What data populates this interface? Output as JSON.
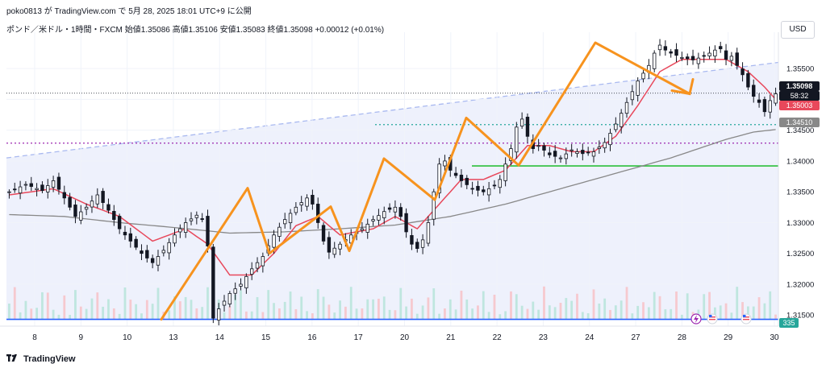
{
  "header": {
    "top_line": "poko0813 が TradingView.com で 5月 28, 2025 18:01 UTC+9 に公開",
    "symbol_line": "ポンド／米ドル・1時間・FXCM",
    "ohlc": [
      {
        "label": "始値",
        "value": "1.35086"
      },
      {
        "label": "高値",
        "value": "1.35106"
      },
      {
        "label": "安値",
        "value": "1.35083"
      },
      {
        "label": "終値",
        "value": "1.35098"
      }
    ],
    "change": "+0.00012 (+0.01%)"
  },
  "currency_button": "USD",
  "logo_text": "TradingView",
  "price_tags": {
    "last_price": "1.35098",
    "countdown": "58:32",
    "ma_fast": "1.35003",
    "ma_slow": "1.34510",
    "volume": "335"
  },
  "colors": {
    "up": "#089981",
    "down": "#131722",
    "candle": "#131722",
    "ma_fast": "#e8485b",
    "ma_slow": "#888888",
    "zigzag": "#f7931e",
    "channel_fill": "#e8ecfb",
    "channel_line": "#a9b9f0",
    "support": "#2bbf3a",
    "bottom_line": "#2962ff",
    "purple_dot": "#9c27b0",
    "green_dot": "#26a69a"
  },
  "chart_data": {
    "type": "candlestick",
    "y_axis_ticks": [
      "1.35500",
      "1.35000",
      "1.34500",
      "1.34000",
      "1.33500",
      "1.33000",
      "1.32500",
      "1.32000",
      "1.31500"
    ],
    "ylim": [
      1.3132,
      1.3609
    ],
    "x_axis_labels": [
      "8",
      "9",
      "10",
      "13",
      "14",
      "15",
      "16",
      "17",
      "20",
      "21",
      "22",
      "23",
      "24",
      "27",
      "28",
      "29",
      "30"
    ],
    "zigzag_points": [
      {
        "day": "13",
        "price": 1.3143
      },
      {
        "day": "14-15",
        "price": 1.3356
      },
      {
        "day": "15",
        "price": 1.325
      },
      {
        "day": "16-17",
        "price": 1.3326
      },
      {
        "day": "17",
        "price": 1.3254
      },
      {
        "day": "20",
        "price": 1.3404
      },
      {
        "day": "21",
        "price": 1.3337
      },
      {
        "day": "21-22",
        "price": 1.347
      },
      {
        "day": "23",
        "price": 1.3393
      },
      {
        "day": "25",
        "price": 1.3592
      },
      {
        "day": "28",
        "price": 1.3509
      }
    ],
    "horizontal_levels": [
      {
        "name": "support",
        "price": 1.3392
      },
      {
        "name": "purple_dotted",
        "price": 1.3429
      },
      {
        "name": "green_dotted",
        "price": 1.3459
      },
      {
        "name": "blue_bottom",
        "price": 1.3143
      }
    ],
    "price_path": [
      [
        0,
        1.335
      ],
      [
        3,
        1.3362
      ],
      [
        6,
        1.3352
      ],
      [
        8,
        1.3368
      ],
      [
        10,
        1.334
      ],
      [
        12,
        1.331
      ],
      [
        14,
        1.3325
      ],
      [
        16,
        1.3345
      ],
      [
        18,
        1.332
      ],
      [
        20,
        1.329
      ],
      [
        22,
        1.327
      ],
      [
        24,
        1.325
      ],
      [
        26,
        1.3235
      ],
      [
        28,
        1.3255
      ],
      [
        30,
        1.328
      ],
      [
        32,
        1.33
      ],
      [
        34,
        1.3312
      ],
      [
        35,
        1.3305
      ],
      [
        36,
        1.3262
      ],
      [
        37,
        1.3145
      ],
      [
        38,
        1.316
      ],
      [
        40,
        1.3185
      ],
      [
        42,
        1.32
      ],
      [
        44,
        1.3225
      ],
      [
        46,
        1.3245
      ],
      [
        48,
        1.328
      ],
      [
        50,
        1.3305
      ],
      [
        52,
        1.3325
      ],
      [
        54,
        1.334
      ],
      [
        55,
        1.333
      ],
      [
        56,
        1.33
      ],
      [
        57,
        1.327
      ],
      [
        58,
        1.3252
      ],
      [
        60,
        1.3265
      ],
      [
        62,
        1.328
      ],
      [
        64,
        1.329
      ],
      [
        66,
        1.3305
      ],
      [
        68,
        1.3318
      ],
      [
        70,
        1.3325
      ],
      [
        71,
        1.331
      ],
      [
        72,
        1.3285
      ],
      [
        73,
        1.3265
      ],
      [
        74,
        1.3258
      ],
      [
        75,
        1.3272
      ],
      [
        76,
        1.33
      ],
      [
        77,
        1.335
      ],
      [
        78,
        1.3395
      ],
      [
        79,
        1.34
      ],
      [
        80,
        1.3385
      ],
      [
        82,
        1.3368
      ],
      [
        84,
        1.3355
      ],
      [
        86,
        1.335
      ],
      [
        88,
        1.336
      ],
      [
        89,
        1.337
      ],
      [
        90,
        1.3395
      ],
      [
        91,
        1.342
      ],
      [
        92,
        1.3455
      ],
      [
        93,
        1.3468
      ],
      [
        94,
        1.344
      ],
      [
        95,
        1.342
      ],
      [
        96,
        1.3425
      ],
      [
        98,
        1.341
      ],
      [
        100,
        1.3405
      ],
      [
        102,
        1.3418
      ],
      [
        104,
        1.3412
      ],
      [
        106,
        1.3415
      ],
      [
        108,
        1.343
      ],
      [
        110,
        1.346
      ],
      [
        112,
        1.3495
      ],
      [
        114,
        1.353
      ],
      [
        116,
        1.3555
      ],
      [
        117,
        1.3575
      ],
      [
        118,
        1.3588
      ],
      [
        119,
        1.358
      ],
      [
        120,
        1.3575
      ],
      [
        122,
        1.3568
      ],
      [
        124,
        1.3564
      ],
      [
        126,
        1.357
      ],
      [
        128,
        1.358
      ],
      [
        129,
        1.3582
      ],
      [
        130,
        1.3565
      ],
      [
        131,
        1.357
      ],
      [
        132,
        1.3555
      ],
      [
        133,
        1.354
      ],
      [
        134,
        1.352
      ],
      [
        135,
        1.3505
      ],
      [
        136,
        1.3495
      ],
      [
        137,
        1.348
      ],
      [
        138,
        1.3498
      ],
      [
        139,
        1.3509
      ]
    ],
    "ma_fast_path": [
      [
        0,
        1.3345
      ],
      [
        8,
        1.3355
      ],
      [
        14,
        1.333
      ],
      [
        20,
        1.331
      ],
      [
        26,
        1.327
      ],
      [
        32,
        1.329
      ],
      [
        36,
        1.3265
      ],
      [
        40,
        1.3215
      ],
      [
        44,
        1.3215
      ],
      [
        48,
        1.325
      ],
      [
        52,
        1.3295
      ],
      [
        56,
        1.331
      ],
      [
        60,
        1.328
      ],
      [
        66,
        1.329
      ],
      [
        70,
        1.331
      ],
      [
        74,
        1.329
      ],
      [
        78,
        1.333
      ],
      [
        82,
        1.337
      ],
      [
        86,
        1.337
      ],
      [
        90,
        1.3385
      ],
      [
        94,
        1.3425
      ],
      [
        98,
        1.3425
      ],
      [
        102,
        1.3415
      ],
      [
        106,
        1.3415
      ],
      [
        110,
        1.344
      ],
      [
        114,
        1.349
      ],
      [
        118,
        1.3545
      ],
      [
        122,
        1.3565
      ],
      [
        126,
        1.3565
      ],
      [
        130,
        1.3565
      ],
      [
        134,
        1.3545
      ],
      [
        137,
        1.352
      ],
      [
        139,
        1.35
      ]
    ],
    "ma_slow_path": [
      [
        0,
        1.3313
      ],
      [
        10,
        1.331
      ],
      [
        20,
        1.33
      ],
      [
        30,
        1.3292
      ],
      [
        40,
        1.3283
      ],
      [
        50,
        1.3285
      ],
      [
        60,
        1.329
      ],
      [
        70,
        1.3296
      ],
      [
        80,
        1.331
      ],
      [
        90,
        1.333
      ],
      [
        100,
        1.3355
      ],
      [
        110,
        1.338
      ],
      [
        120,
        1.3405
      ],
      [
        125,
        1.342
      ],
      [
        130,
        1.3435
      ],
      [
        135,
        1.3447
      ],
      [
        139,
        1.3451
      ]
    ]
  }
}
